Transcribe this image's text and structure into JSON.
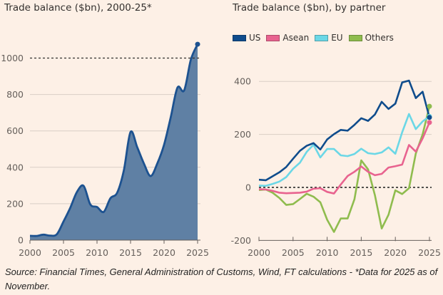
{
  "chart_data": [
    {
      "type": "area",
      "title": "Trade balance ($bn), 2000-25*",
      "xlabel": "",
      "ylabel": "",
      "x": [
        2000,
        2001,
        2002,
        2003,
        2004,
        2005,
        2006,
        2007,
        2008,
        2009,
        2010,
        2011,
        2012,
        2013,
        2014,
        2015,
        2016,
        2017,
        2018,
        2019,
        2020,
        2021,
        2022,
        2023,
        2024,
        2025
      ],
      "values": [
        24,
        23,
        30,
        25,
        32,
        102,
        177,
        264,
        298,
        196,
        182,
        155,
        230,
        260,
        383,
        594,
        510,
        420,
        352,
        422,
        524,
        676,
        838,
        823,
        992,
        1076
      ],
      "xlim": [
        2000,
        2025
      ],
      "ylim": [
        0,
        1100
      ],
      "xticks": [
        "2000",
        "2005",
        "2010",
        "2015",
        "2020",
        "2025"
      ],
      "yticks": [
        "0",
        "200",
        "400",
        "600",
        "800",
        "1000"
      ],
      "reference_line": {
        "value": 1000,
        "style": "dashed"
      },
      "grid": true,
      "color": "#1d5290",
      "fill_color": "#5f80a4"
    },
    {
      "type": "line",
      "title": "Trade balance ($bn), by partner",
      "xlabel": "",
      "ylabel": "",
      "x": [
        2000,
        2001,
        2002,
        2003,
        2004,
        2005,
        2006,
        2007,
        2008,
        2009,
        2010,
        2011,
        2012,
        2013,
        2014,
        2015,
        2016,
        2017,
        2018,
        2019,
        2020,
        2021,
        2022,
        2023,
        2024,
        2025
      ],
      "series": [
        {
          "name": "US",
          "color": "#0f4c8c",
          "values": [
            29,
            27,
            42,
            57,
            77,
            108,
            138,
            157,
            167,
            143,
            181,
            201,
            217,
            214,
            236,
            261,
            251,
            275,
            323,
            296,
            316,
            396,
            403,
            337,
            361,
            264
          ]
        },
        {
          "name": "Asean",
          "color": "#e8638f",
          "values": [
            -7,
            -8,
            -13,
            -20,
            -22,
            -21,
            -20,
            -16,
            -5,
            -3,
            -17,
            -23,
            11,
            43,
            59,
            79,
            59,
            46,
            51,
            75,
            80,
            86,
            160,
            135,
            185,
            245
          ]
        },
        {
          "name": "EU",
          "color": "#6bd7e6",
          "values": [
            7,
            6,
            13,
            22,
            39,
            70,
            93,
            134,
            161,
            113,
            145,
            145,
            121,
            118,
            126,
            146,
            129,
            126,
            132,
            151,
            127,
            208,
            277,
            220,
            249,
            268
          ]
        },
        {
          "name": "Others",
          "color": "#8fbc4e",
          "values": [
            -10,
            -8,
            -20,
            -40,
            -66,
            -63,
            -44,
            -24,
            -35,
            -56,
            -122,
            -168,
            -117,
            -117,
            -45,
            102,
            68,
            -29,
            -155,
            -103,
            -11,
            -25,
            -3,
            128,
            200,
            306
          ]
        }
      ],
      "xlim": [
        2000,
        2025
      ],
      "ylim": [
        -200,
        440
      ],
      "xticks": [
        "2000",
        "2005",
        "2010",
        "2015",
        "2020",
        "2025"
      ],
      "yticks": [
        "-200",
        "0",
        "200",
        "400"
      ],
      "reference_line": {
        "value": 0,
        "style": "dashed"
      },
      "legend": "top-left",
      "grid": true
    }
  ],
  "legend": [
    {
      "label": "US",
      "color": "#0f4c8c"
    },
    {
      "label": "Asean",
      "color": "#e8638f"
    },
    {
      "label": "EU",
      "color": "#6bd7e6"
    },
    {
      "label": "Others",
      "color": "#8fbc4e"
    }
  ],
  "footnote": "Source: Financial Times, General Administration of Customs, Wind, FT calculations - *Data for 2025 as of November."
}
